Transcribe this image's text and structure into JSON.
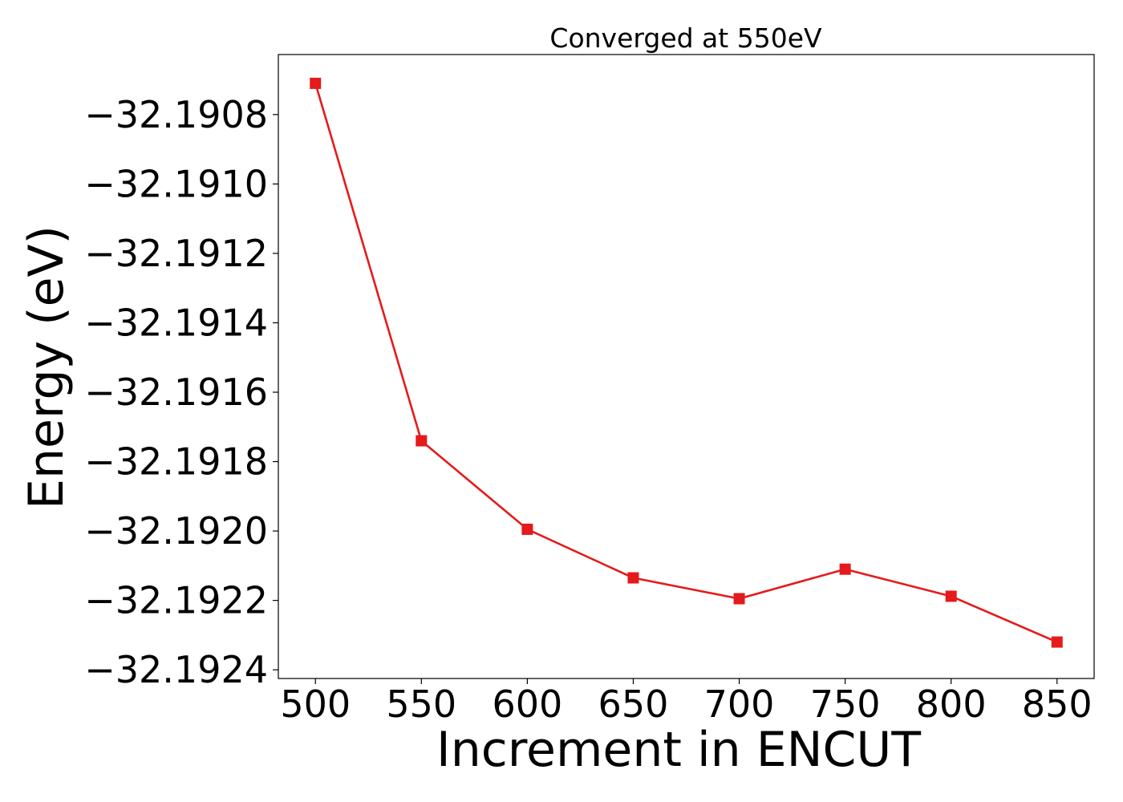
{
  "chart_data": {
    "type": "line",
    "title": "Converged at 550eV",
    "xlabel": "Increment in ENCUT",
    "ylabel": "Energy (eV)",
    "x": [
      500,
      550,
      600,
      650,
      700,
      750,
      800,
      850
    ],
    "series": [
      {
        "values": [
          -32.19071,
          -32.19174,
          -32.191995,
          -32.192135,
          -32.192195,
          -32.19211,
          -32.192188,
          -32.19232
        ],
        "color": "#e41a1c",
        "marker": "square"
      }
    ],
    "xticks": [
      500,
      550,
      600,
      650,
      700,
      750,
      800,
      850
    ],
    "xtick_labels": [
      "500",
      "550",
      "600",
      "650",
      "700",
      "750",
      "800",
      "850"
    ],
    "yticks": [
      -32.1908,
      -32.191,
      -32.1912,
      -32.1914,
      -32.1916,
      -32.1918,
      -32.192,
      -32.1922,
      -32.1924
    ],
    "ytick_labels": [
      "−32.1908",
      "−32.1910",
      "−32.1912",
      "−32.1914",
      "−32.1916",
      "−32.1918",
      "−32.1920",
      "−32.1922",
      "−32.1924"
    ],
    "xlim": [
      482.5,
      867.5
    ],
    "ylim": [
      -32.192425,
      -32.190627
    ],
    "grid": false,
    "legend": "none"
  }
}
